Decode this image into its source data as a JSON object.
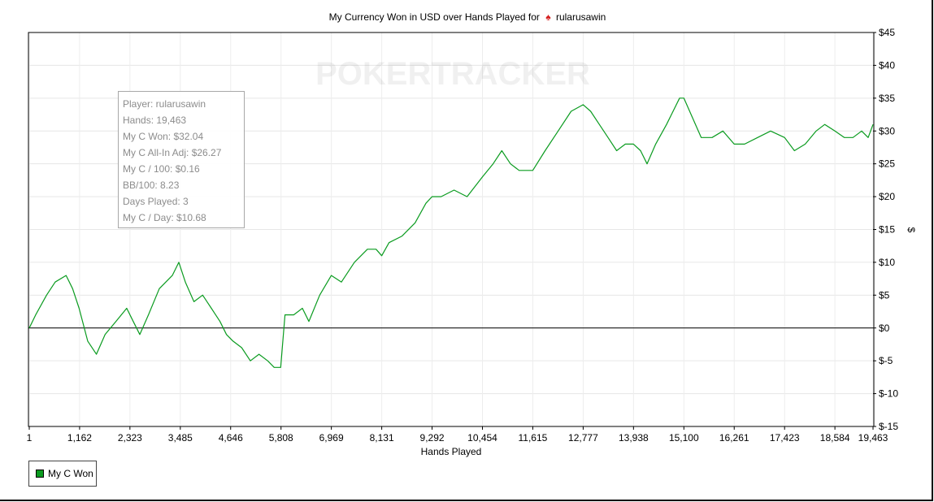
{
  "chart_data": {
    "type": "line",
    "title": "My Currency Won in USD over Hands Played for",
    "site_icon": "pokerstars-spade-icon",
    "player_name": "rularusawin",
    "watermark": "POKERTRACKER",
    "xlabel": "Hands Played",
    "ylabel": "$",
    "xlim": [
      1,
      19463
    ],
    "ylim": [
      -15,
      45
    ],
    "x_ticks": [
      "1",
      "1,162",
      "2,323",
      "3,485",
      "4,646",
      "5,808",
      "6,969",
      "8,131",
      "9,292",
      "10,454",
      "11,615",
      "12,777",
      "13,938",
      "15,100",
      "16,261",
      "17,423",
      "18,584",
      "19,463"
    ],
    "x_tick_values": [
      1,
      1162,
      2323,
      3485,
      4646,
      5808,
      6969,
      8131,
      9292,
      10454,
      11615,
      12777,
      13938,
      15100,
      16261,
      17423,
      18584,
      19463
    ],
    "y_ticks": [
      "$45",
      "$40",
      "$35",
      "$30",
      "$25",
      "$20",
      "$15",
      "$10",
      "$5",
      "$0",
      "$-5",
      "$-10",
      "$-15"
    ],
    "y_tick_values": [
      45,
      40,
      35,
      30,
      25,
      20,
      15,
      10,
      5,
      0,
      -5,
      -10,
      -15
    ],
    "grid": true,
    "legend_position": "bottom-left",
    "series": [
      {
        "name": "My C Won",
        "color": "#0a9b1f",
        "x": [
          1,
          150,
          400,
          600,
          850,
          1000,
          1150,
          1350,
          1550,
          1750,
          2000,
          2250,
          2400,
          2550,
          2750,
          3000,
          3300,
          3450,
          3600,
          3800,
          4000,
          4200,
          4400,
          4550,
          4700,
          4900,
          5100,
          5300,
          5500,
          5650,
          5800,
          5900,
          6100,
          6300,
          6450,
          6700,
          6969,
          7200,
          7500,
          7800,
          8000,
          8131,
          8300,
          8600,
          8900,
          9150,
          9292,
          9500,
          9800,
          10100,
          10454,
          10700,
          10900,
          11100,
          11300,
          11615,
          11900,
          12200,
          12500,
          12777,
          12950,
          13150,
          13350,
          13550,
          13750,
          13938,
          14100,
          14250,
          14450,
          14700,
          14850,
          15000,
          15100,
          15300,
          15500,
          15750,
          16000,
          16261,
          16500,
          16800,
          17100,
          17423,
          17650,
          17900,
          18150,
          18350,
          18584,
          18800,
          19000,
          19200,
          19350,
          19463
        ],
        "y": [
          0,
          2,
          5,
          7,
          8,
          6,
          3,
          -2,
          -4,
          -1,
          1,
          3,
          1,
          -1,
          2,
          6,
          8,
          10,
          7,
          4,
          5,
          3,
          1,
          -1,
          -2,
          -3,
          -5,
          -4,
          -5,
          -6,
          -6,
          2,
          2,
          3,
          1,
          5,
          8,
          7,
          10,
          12,
          12,
          11,
          13,
          14,
          16,
          19,
          20,
          20,
          21,
          20,
          23,
          25,
          27,
          25,
          24,
          24,
          27,
          30,
          33,
          34,
          33,
          31,
          29,
          27,
          28,
          28,
          27,
          25,
          28,
          31,
          33,
          35,
          35,
          32,
          29,
          29,
          30,
          28,
          28,
          29,
          30,
          29,
          27,
          28,
          30,
          31,
          30,
          29,
          29,
          30,
          29,
          31
        ]
      }
    ]
  },
  "tooltip": {
    "lines": [
      "Player: rularusawin",
      "Hands: 19,463",
      "My C Won: $32.04",
      "My C All-In Adj: $26.27",
      "My C / 100: $0.16",
      "BB/100: 8.23",
      "Days Played: 3",
      "My C / Day: $10.68"
    ]
  },
  "legend": {
    "label": "My C Won"
  }
}
